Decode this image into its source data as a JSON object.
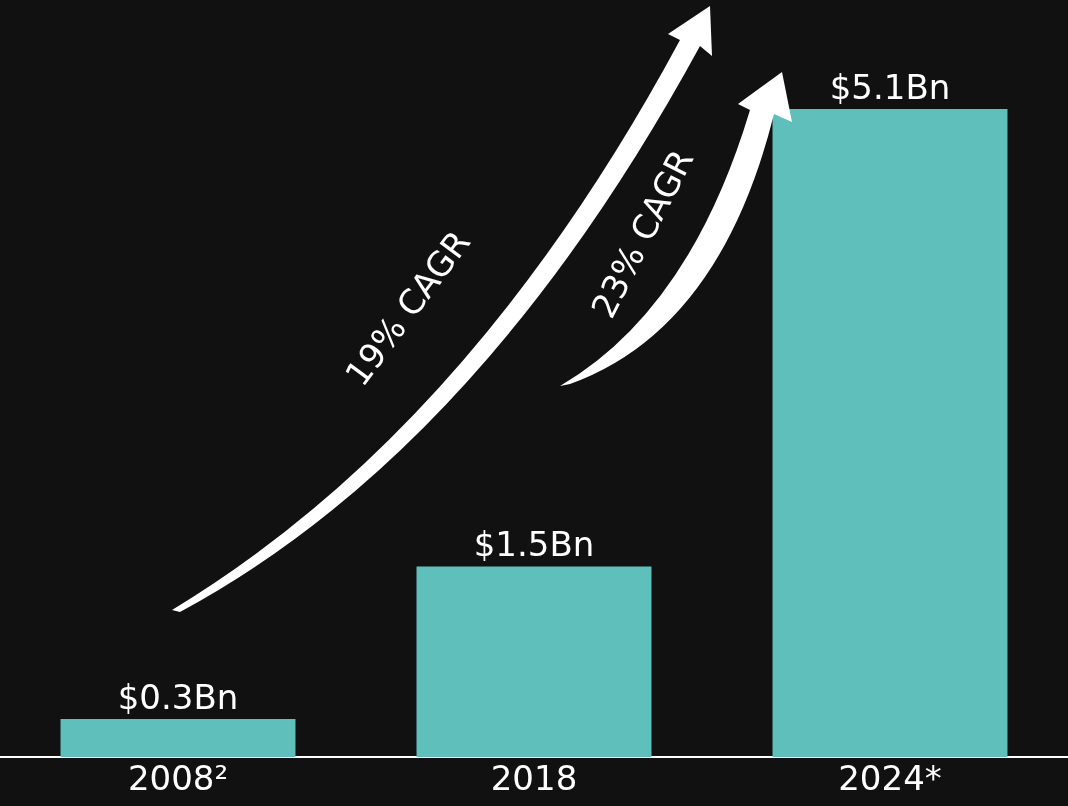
{
  "chart_data": {
    "type": "bar",
    "categories": [
      "2008²",
      "2018",
      "2024*"
    ],
    "values": [
      0.3,
      1.5,
      5.1
    ],
    "value_labels": [
      "$0.3Bn",
      "$1.5Bn",
      "$5.1Bn"
    ],
    "color": "#5ebfbb",
    "annotations": [
      "19% CAGR",
      "23% CAGR"
    ],
    "legend": false
  }
}
